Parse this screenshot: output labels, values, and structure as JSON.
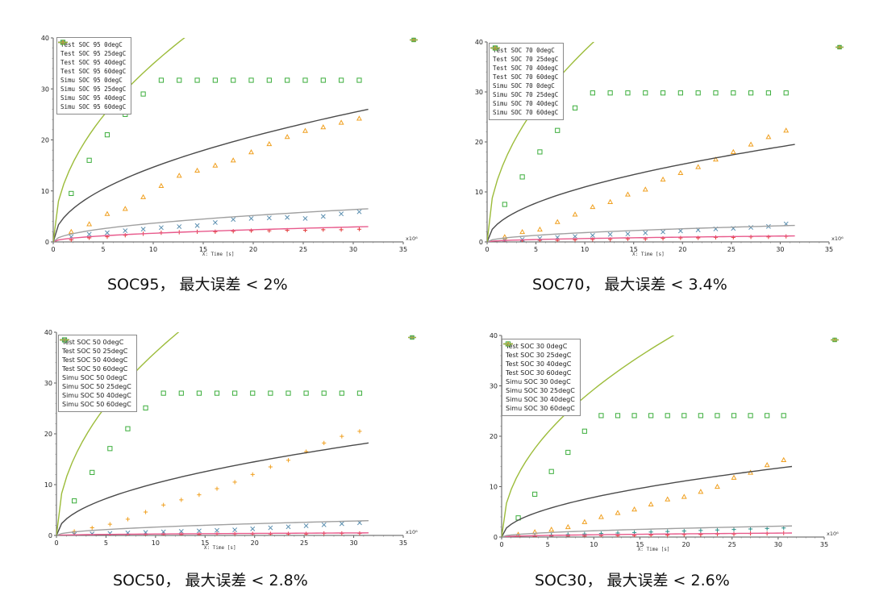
{
  "chart_data": [
    {
      "type": "scatter",
      "caption": "SOC95， 最大误差 < 2%",
      "xlabel": "X: Time [s]",
      "xscale_label": "x10⁶",
      "xlim": [
        0,
        35
      ],
      "ylim": [
        0,
        40
      ],
      "xticks": [
        "0",
        "5",
        "10",
        "15",
        "20",
        "25",
        "30",
        "35"
      ],
      "yticks": [
        "0",
        "10",
        "20",
        "30",
        "40"
      ],
      "legend_style": "mono",
      "series": [
        {
          "name": "Test SOC 95 0degC",
          "kind": "marker",
          "marker": "plus",
          "color": "#e23a3a",
          "x": [
            1.8,
            3.6,
            5.4,
            7.2,
            9.0,
            10.8,
            12.6,
            14.4,
            16.2,
            18.0,
            19.8,
            21.6,
            23.4,
            25.2,
            27.0,
            28.8,
            30.6
          ],
          "y": [
            0.4,
            0.8,
            1.0,
            1.3,
            1.6,
            1.8,
            1.9,
            2.0,
            2.0,
            2.1,
            2.2,
            2.2,
            2.3,
            2.3,
            2.4,
            2.4,
            2.5
          ]
        },
        {
          "name": "Test SOC 95 25degC",
          "kind": "marker",
          "marker": "cross",
          "color": "#5b8fb0",
          "x": [
            1.8,
            3.6,
            5.4,
            7.2,
            9.0,
            10.8,
            12.6,
            14.4,
            16.2,
            18.0,
            19.8,
            21.6,
            23.4,
            25.2,
            27.0,
            28.8,
            30.6
          ],
          "y": [
            1.0,
            1.5,
            1.8,
            2.2,
            2.5,
            2.8,
            3.0,
            3.2,
            3.8,
            4.4,
            4.6,
            4.7,
            4.8,
            4.6,
            5.0,
            5.5,
            5.9
          ]
        },
        {
          "name": "Test SOC 95 40degC",
          "kind": "marker",
          "marker": "triangle",
          "color": "#f0a020",
          "x": [
            1.8,
            3.6,
            5.4,
            7.2,
            9.0,
            10.8,
            12.6,
            14.4,
            16.2,
            18.0,
            19.8,
            21.6,
            23.4,
            25.2,
            27.0,
            28.8,
            30.6
          ],
          "y": [
            2.0,
            3.5,
            5.5,
            6.5,
            8.8,
            11.0,
            13.0,
            14.0,
            15.0,
            16.0,
            17.6,
            19.2,
            20.6,
            21.8,
            22.5,
            23.4,
            24.2
          ]
        },
        {
          "name": "Test SOC 95 60degC",
          "kind": "marker",
          "marker": "square",
          "color": "#3cae3c",
          "x": [
            1.8,
            3.6,
            5.4,
            7.2,
            9.0,
            10.8,
            12.6,
            14.4,
            16.2,
            18.0,
            19.8,
            21.6,
            23.4,
            25.2,
            27.0,
            28.8,
            30.6
          ],
          "y": [
            9.5,
            16.0,
            21.0,
            25.0,
            29.0,
            31.7,
            31.7,
            31.7,
            31.7,
            31.7,
            31.7,
            31.7,
            31.7,
            31.7,
            31.7,
            31.7,
            31.7
          ]
        },
        {
          "name": "Simu SOC 95 0degC",
          "kind": "line",
          "color": "#e85a8c",
          "end": 31.5,
          "end_value": 3.0
        },
        {
          "name": "Simu SOC 95 25degC",
          "kind": "line",
          "color": "#a0a0a0",
          "end": 31.5,
          "end_value": 6.5
        },
        {
          "name": "Simu SOC 95 40degC",
          "kind": "line",
          "color": "#4a4a4a",
          "end": 31.5,
          "end_value": 26.0
        },
        {
          "name": "Simu SOC 95 60degC",
          "kind": "line",
          "color": "#9cbc3a",
          "end": 31.5,
          "end_value": 62.0
        }
      ]
    },
    {
      "type": "scatter",
      "caption": "SOC70， 最大误差 < 3.4%",
      "xlabel": "X: Time [s]",
      "xscale_label": "x10⁶",
      "xlim": [
        0,
        35
      ],
      "ylim": [
        0,
        40
      ],
      "xticks": [
        "0",
        "5",
        "10",
        "15",
        "20",
        "25",
        "30",
        "35"
      ],
      "yticks": [
        "0",
        "10",
        "20",
        "30",
        "40"
      ],
      "legend_style": "mono",
      "series": [
        {
          "name": "Test SOC 70 0degC",
          "kind": "marker",
          "marker": "plus",
          "color": "#e23a3a",
          "x": [
            1.8,
            3.6,
            5.4,
            7.2,
            9.0,
            10.8,
            12.6,
            14.4,
            16.2,
            18.0,
            19.8,
            21.6,
            23.4,
            25.2,
            27.0,
            28.8,
            30.6
          ],
          "y": [
            0.1,
            0.2,
            0.3,
            0.3,
            0.4,
            0.5,
            0.5,
            0.6,
            0.6,
            0.7,
            0.8,
            0.8,
            0.9,
            0.9,
            1.0,
            1.0,
            1.1
          ]
        },
        {
          "name": "Test SOC 70 25degC",
          "kind": "marker",
          "marker": "cross",
          "color": "#5b8fb0",
          "x": [
            1.8,
            3.6,
            5.4,
            7.2,
            9.0,
            10.8,
            12.6,
            14.4,
            16.2,
            18.0,
            19.8,
            21.6,
            23.4,
            25.2,
            27.0,
            28.8,
            30.6
          ],
          "y": [
            0.3,
            0.5,
            0.7,
            0.9,
            1.1,
            1.3,
            1.5,
            1.6,
            1.8,
            2.0,
            2.2,
            2.4,
            2.6,
            2.7,
            2.9,
            3.1,
            3.6
          ]
        },
        {
          "name": "Test SOC 70 40degC",
          "kind": "marker",
          "marker": "triangle",
          "color": "#f0a020",
          "x": [
            1.8,
            3.6,
            5.4,
            7.2,
            9.0,
            10.8,
            12.6,
            14.4,
            16.2,
            18.0,
            19.8,
            21.6,
            23.4,
            25.2,
            27.0,
            28.8,
            30.6
          ],
          "y": [
            1.0,
            2.0,
            2.5,
            4.0,
            5.5,
            7.0,
            8.0,
            9.5,
            10.5,
            12.5,
            13.8,
            15.0,
            16.5,
            18.0,
            19.5,
            21.0,
            22.3
          ]
        },
        {
          "name": "Test SOC 70 60degC",
          "kind": "marker",
          "marker": "square",
          "color": "#3cae3c",
          "x": [
            1.8,
            3.6,
            5.4,
            7.2,
            9.0,
            10.8,
            12.6,
            14.4,
            16.2,
            18.0,
            19.8,
            21.6,
            23.4,
            25.2,
            27.0,
            28.8,
            30.6
          ],
          "y": [
            7.5,
            13.0,
            18.0,
            22.3,
            26.8,
            29.8,
            29.8,
            29.8,
            29.8,
            29.8,
            29.8,
            29.8,
            29.8,
            29.8,
            29.8,
            29.8,
            29.8
          ]
        },
        {
          "name": "Simu SOC 70 0degC",
          "kind": "line",
          "color": "#e85a8c",
          "end": 31.5,
          "end_value": 1.2
        },
        {
          "name": "Simu SOC 70 25degC",
          "kind": "line",
          "color": "#a0a0a0",
          "end": 31.5,
          "end_value": 3.3
        },
        {
          "name": "Simu SOC 70 40degC",
          "kind": "line",
          "color": "#4a4a4a",
          "end": 31.5,
          "end_value": 19.5
        },
        {
          "name": "Simu SOC 70 60degC",
          "kind": "line",
          "color": "#9cbc3a",
          "end": 31.5,
          "end_value": 68.0
        }
      ]
    },
    {
      "type": "scatter",
      "caption": "SOC50， 最大误差 < 2.8%",
      "xlabel": "X: Time [s]",
      "xscale_label": "x10⁶",
      "xlim": [
        0,
        35
      ],
      "ylim": [
        0,
        40
      ],
      "xticks": [
        "0",
        "5",
        "10",
        "15",
        "20",
        "25",
        "30",
        "35"
      ],
      "yticks": [
        "0",
        "10",
        "20",
        "30",
        "40"
      ],
      "legend_style": "sans",
      "series": [
        {
          "name": "Test SOC 50 0degC",
          "kind": "marker",
          "marker": "plus",
          "color": "#e23a3a",
          "x": [
            1.8,
            3.6,
            5.4,
            7.2,
            9.0,
            10.8,
            12.6,
            14.4,
            16.2,
            18.0,
            19.8,
            21.6,
            23.4,
            25.2,
            27.0,
            28.8,
            30.6
          ],
          "y": [
            0.1,
            0.1,
            0.1,
            0.2,
            0.2,
            0.2,
            0.2,
            0.2,
            0.3,
            0.3,
            0.3,
            0.3,
            0.3,
            0.3,
            0.4,
            0.4,
            0.4
          ]
        },
        {
          "name": "Test SOC 50 25degC",
          "kind": "marker",
          "marker": "cross",
          "color": "#5b8fb0",
          "x": [
            1.8,
            3.6,
            5.4,
            7.2,
            9.0,
            10.8,
            12.6,
            14.4,
            16.2,
            18.0,
            19.8,
            21.6,
            23.4,
            25.2,
            27.0,
            28.8,
            30.6
          ],
          "y": [
            0.2,
            0.3,
            0.4,
            0.5,
            0.6,
            0.7,
            0.8,
            0.9,
            1.0,
            1.1,
            1.3,
            1.5,
            1.7,
            1.9,
            2.1,
            2.3,
            2.5
          ]
        },
        {
          "name": "Test SOC 50 40degC",
          "kind": "marker",
          "marker": "plus",
          "color": "#f0a020",
          "x": [
            1.8,
            3.6,
            5.4,
            7.2,
            9.0,
            10.8,
            12.6,
            14.4,
            16.2,
            18.0,
            19.8,
            21.6,
            23.4,
            25.2,
            27.0,
            28.8,
            30.6
          ],
          "y": [
            0.8,
            1.5,
            2.2,
            3.2,
            4.6,
            6.0,
            7.0,
            8.0,
            9.2,
            10.5,
            12.0,
            13.5,
            14.8,
            16.5,
            18.2,
            19.5,
            20.5
          ]
        },
        {
          "name": "Test SOC 50 60degC",
          "kind": "marker",
          "marker": "square",
          "color": "#3cae3c",
          "x": [
            1.8,
            3.6,
            5.4,
            7.2,
            9.0,
            10.8,
            12.6,
            14.4,
            16.2,
            18.0,
            19.8,
            21.6,
            23.4,
            25.2,
            27.0,
            28.8,
            30.6
          ],
          "y": [
            6.8,
            12.4,
            17.1,
            21.0,
            25.1,
            28.0,
            28.0,
            28.0,
            28.0,
            28.0,
            28.0,
            28.0,
            28.0,
            28.0,
            28.0,
            28.0,
            28.0
          ]
        },
        {
          "name": "Simu SOC 50 0degC",
          "kind": "line",
          "color": "#e85a8c",
          "end": 31.5,
          "end_value": 0.5
        },
        {
          "name": "Simu SOC 50 25degC",
          "kind": "line",
          "color": "#a0a0a0",
          "end": 31.5,
          "end_value": 2.9
        },
        {
          "name": "Simu SOC 50 40degC",
          "kind": "line",
          "color": "#4a4a4a",
          "end": 31.5,
          "end_value": 18.2
        },
        {
          "name": "Simu SOC 50 60degC",
          "kind": "line",
          "color": "#9cbc3a",
          "end": 31.5,
          "end_value": 64.0
        }
      ]
    },
    {
      "type": "scatter",
      "caption": "SOC30， 最大误差 < 2.6%",
      "xlabel": "X: Time [s]",
      "xscale_label": "x10⁶",
      "xlim": [
        0,
        35
      ],
      "ylim": [
        0,
        40
      ],
      "xticks": [
        "0",
        "5",
        "10",
        "15",
        "20",
        "25",
        "30",
        "35"
      ],
      "yticks": [
        "0",
        "10",
        "20",
        "30",
        "40"
      ],
      "legend_style": "sans",
      "series": [
        {
          "name": "Test SOC 30 0degC",
          "kind": "marker",
          "marker": "plus",
          "color": "#e23a3a",
          "x": [
            1.8,
            3.6,
            5.4,
            7.2,
            9.0,
            10.8,
            12.6,
            14.4,
            16.2,
            18.0,
            19.8,
            21.6,
            23.4,
            25.2,
            27.0,
            28.8,
            30.6
          ],
          "y": [
            0.1,
            0.1,
            0.2,
            0.2,
            0.2,
            0.3,
            0.3,
            0.3,
            0.4,
            0.4,
            0.5,
            0.5,
            0.6,
            0.6,
            0.7,
            0.7,
            0.8
          ]
        },
        {
          "name": "Test SOC 30 25degC",
          "kind": "marker",
          "marker": "plus",
          "color": "#2e8f8a",
          "x": [
            1.8,
            3.6,
            5.4,
            7.2,
            9.0,
            10.8,
            12.6,
            14.4,
            16.2,
            18.0,
            19.8,
            21.6,
            23.4,
            25.2,
            27.0,
            28.8,
            30.6
          ],
          "y": [
            0.2,
            0.3,
            0.4,
            0.5,
            0.6,
            0.7,
            0.8,
            0.9,
            1.0,
            1.1,
            1.2,
            1.3,
            1.4,
            1.5,
            1.6,
            1.7,
            1.8
          ]
        },
        {
          "name": "Test SOC 30 40degC",
          "kind": "marker",
          "marker": "triangle",
          "color": "#f0a020",
          "x": [
            1.8,
            3.6,
            5.4,
            7.2,
            9.0,
            10.8,
            12.6,
            14.4,
            16.2,
            18.0,
            19.8,
            21.6,
            23.4,
            25.2,
            27.0,
            28.8,
            30.6
          ],
          "y": [
            0.5,
            1.0,
            1.5,
            2.0,
            3.0,
            4.0,
            4.8,
            5.5,
            6.5,
            7.5,
            8.0,
            9.0,
            10.0,
            11.8,
            12.8,
            14.3,
            15.3
          ]
        },
        {
          "name": "Test SOC 30 60degC",
          "kind": "marker",
          "marker": "square",
          "color": "#3cae3c",
          "x": [
            1.8,
            3.6,
            5.4,
            7.2,
            9.0,
            10.8,
            12.6,
            14.4,
            16.2,
            18.0,
            19.8,
            21.6,
            23.4,
            25.2,
            27.0,
            28.8,
            30.6
          ],
          "y": [
            3.8,
            8.5,
            13.0,
            16.8,
            21.0,
            24.1,
            24.1,
            24.1,
            24.1,
            24.1,
            24.1,
            24.1,
            24.1,
            24.1,
            24.1,
            24.1,
            24.1
          ]
        },
        {
          "name": "Simu SOC 30 0degC",
          "kind": "line",
          "color": "#e85a8c",
          "end": 31.5,
          "end_value": 0.8
        },
        {
          "name": "Simu SOC 30 25degC",
          "kind": "line",
          "color": "#a0a0a0",
          "end": 31.5,
          "end_value": 2.2
        },
        {
          "name": "Simu SOC 30 40degC",
          "kind": "line",
          "color": "#4a4a4a",
          "end": 31.5,
          "end_value": 14.0
        },
        {
          "name": "Simu SOC 30 60degC",
          "kind": "line",
          "color": "#9cbc3a",
          "end": 31.5,
          "end_value": 52.0
        }
      ]
    }
  ]
}
